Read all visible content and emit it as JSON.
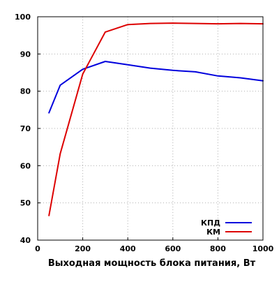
{
  "chart_data": {
    "type": "line",
    "title": "",
    "xlabel": "Выходная мощность блока питания, Вт",
    "ylabel": "",
    "xlim": [
      0,
      1000
    ],
    "ylim": [
      40,
      100
    ],
    "xticks": [
      0,
      200,
      400,
      600,
      800,
      1000
    ],
    "yticks": [
      40,
      50,
      60,
      70,
      80,
      90,
      100
    ],
    "grid": true,
    "legend_position": "bottom-right",
    "series": [
      {
        "name": "КПД",
        "color": "#0000dd",
        "x": [
          50,
          100,
          200,
          300,
          400,
          500,
          600,
          700,
          800,
          900,
          1000
        ],
        "y": [
          74.2,
          81.6,
          85.9,
          88.0,
          87.1,
          86.2,
          85.6,
          85.2,
          84.1,
          83.6,
          82.8
        ]
      },
      {
        "name": "КМ",
        "color": "#dd0000",
        "x": [
          50,
          100,
          200,
          300,
          400,
          500,
          600,
          700,
          800,
          900,
          1000
        ],
        "y": [
          46.6,
          63.2,
          84.6,
          95.9,
          97.9,
          98.2,
          98.3,
          98.2,
          98.1,
          98.2,
          98.1
        ]
      }
    ]
  }
}
